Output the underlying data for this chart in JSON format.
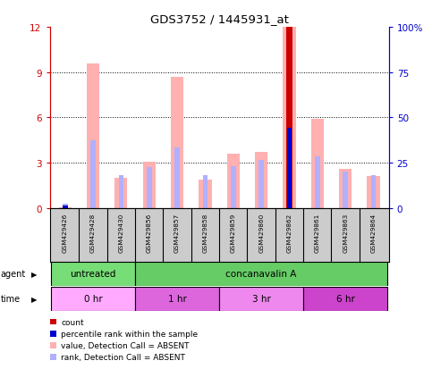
{
  "title": "GDS3752 / 1445931_at",
  "samples": [
    "GSM429426",
    "GSM429428",
    "GSM429430",
    "GSM429856",
    "GSM429857",
    "GSM429858",
    "GSM429859",
    "GSM429860",
    "GSM429862",
    "GSM429861",
    "GSM429863",
    "GSM429864"
  ],
  "value_absent": [
    0.05,
    9.6,
    2.0,
    3.1,
    8.7,
    1.9,
    3.6,
    3.7,
    12.0,
    5.9,
    2.6,
    2.1
  ],
  "rank_absent": [
    0.3,
    4.5,
    2.2,
    2.7,
    4.0,
    2.2,
    2.8,
    3.2,
    5.3,
    3.4,
    2.4,
    2.2
  ],
  "count": [
    0.0,
    0.0,
    0.0,
    0.0,
    0.0,
    0.0,
    0.0,
    0.0,
    12.0,
    0.0,
    0.0,
    0.0
  ],
  "percentile_rank": [
    0.2,
    0.0,
    0.0,
    0.0,
    0.0,
    0.0,
    0.0,
    0.0,
    5.3,
    0.0,
    0.0,
    0.0
  ],
  "ylim": [
    0,
    12
  ],
  "y_ticks_left": [
    0,
    3,
    6,
    9,
    12
  ],
  "y_ticks_right_vals": [
    0,
    25,
    50,
    75,
    100
  ],
  "y_ticks_right_labels": [
    "0",
    "25",
    "50",
    "75",
    "100%"
  ],
  "left_color": "#cc0000",
  "right_color": "#0000cc",
  "value_absent_color": "#ffb0b0",
  "rank_absent_color": "#b0b0ff",
  "count_color": "#cc0000",
  "percentile_color": "#0000cc",
  "agent_groups": [
    {
      "label": "untreated",
      "start": 0,
      "end": 3,
      "color": "#77dd77"
    },
    {
      "label": "concanavalin A",
      "start": 3,
      "end": 12,
      "color": "#66cc66"
    }
  ],
  "time_groups": [
    {
      "label": "0 hr",
      "start": 0,
      "end": 3,
      "color": "#ffaaff"
    },
    {
      "label": "1 hr",
      "start": 3,
      "end": 6,
      "color": "#dd66dd"
    },
    {
      "label": "3 hr",
      "start": 6,
      "end": 9,
      "color": "#ee88ee"
    },
    {
      "label": "6 hr",
      "start": 9,
      "end": 12,
      "color": "#cc44cc"
    }
  ],
  "background_color": "#ffffff",
  "sample_box_color": "#cccccc",
  "legend_items": [
    {
      "color": "#cc0000",
      "label": "count"
    },
    {
      "color": "#0000cc",
      "label": "percentile rank within the sample"
    },
    {
      "color": "#ffb0b0",
      "label": "value, Detection Call = ABSENT"
    },
    {
      "color": "#b0b0ff",
      "label": "rank, Detection Call = ABSENT"
    }
  ],
  "value_bar_width": 0.45,
  "rank_bar_width": 0.18,
  "count_bar_width": 0.22,
  "percentile_bar_width": 0.18
}
